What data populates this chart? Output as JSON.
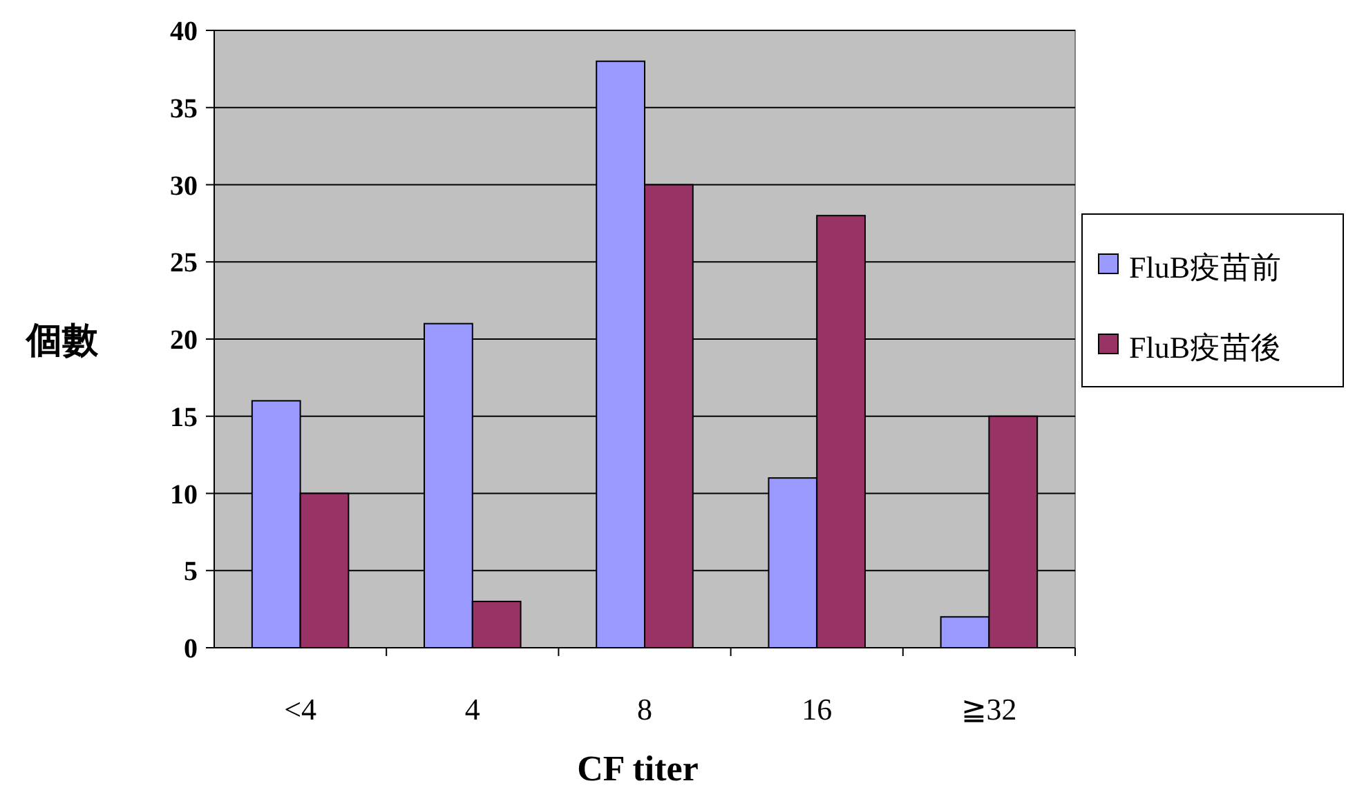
{
  "chart_data": {
    "type": "bar",
    "categories": [
      "<4",
      "4",
      "8",
      "16",
      "≧32"
    ],
    "series": [
      {
        "name": "FluB疫苗前",
        "color": "#9999ff",
        "values": [
          16,
          21,
          38,
          11,
          2
        ]
      },
      {
        "name": "FluB疫苗後",
        "color": "#993366",
        "values": [
          10,
          3,
          30,
          28,
          15
        ]
      }
    ],
    "ylim": [
      0,
      40
    ],
    "yticks": [
      0,
      5,
      10,
      15,
      20,
      25,
      30,
      35,
      40
    ],
    "xlabel": "CF titer",
    "ylabel": "個數",
    "grid": "y",
    "legend": "right"
  }
}
